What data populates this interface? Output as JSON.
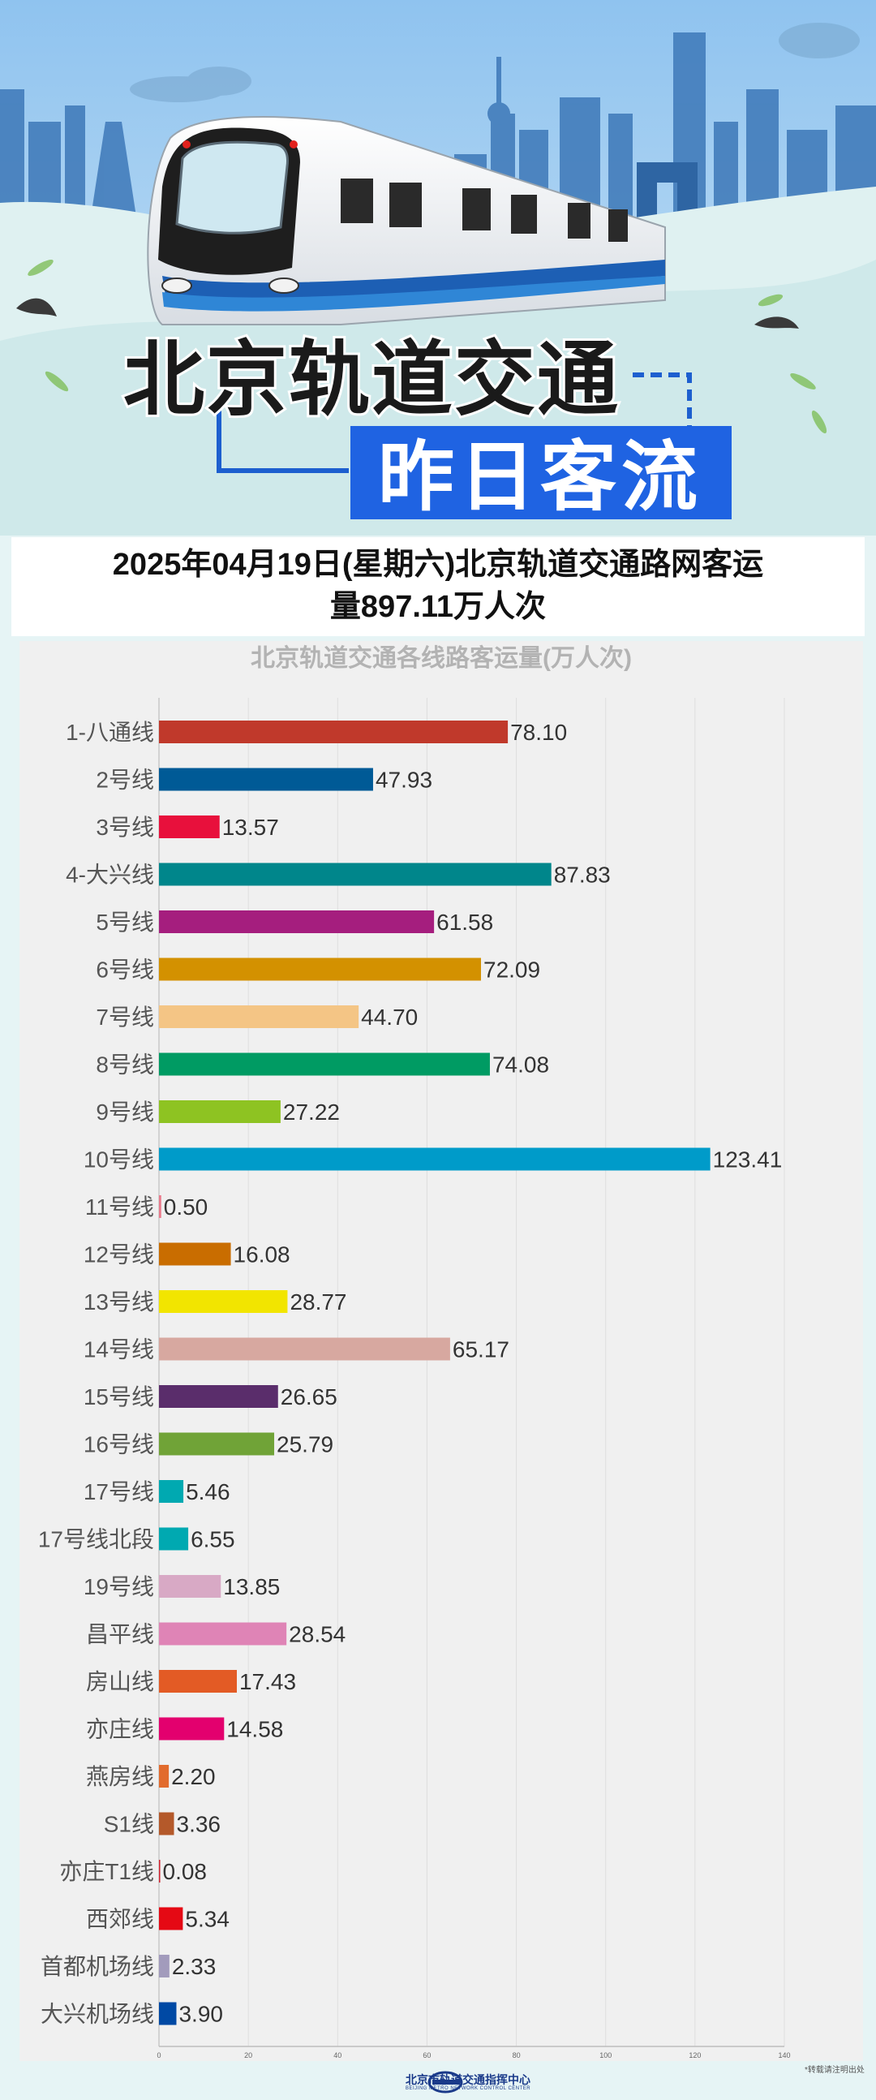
{
  "header": {
    "title": "北京轨道交通",
    "subtitle_tag": "昨日客流"
  },
  "summary": {
    "line1": "2025年04月19日(星期六)北京轨道交通路网客运",
    "line2": "量897.11万人次"
  },
  "chart_data": {
    "type": "bar",
    "orientation": "horizontal",
    "title": "北京轨道交通各线路客运量(万人次)",
    "xlim": [
      0,
      140
    ],
    "xticks": [
      0,
      20,
      40,
      60,
      80,
      100,
      120,
      140
    ],
    "grid": true,
    "categories": [
      "1-八通线",
      "2号线",
      "3号线",
      "4-大兴线",
      "5号线",
      "6号线",
      "7号线",
      "8号线",
      "9号线",
      "10号线",
      "11号线",
      "12号线",
      "13号线",
      "14号线",
      "15号线",
      "16号线",
      "17号线",
      "17号线北段",
      "19号线",
      "昌平线",
      "房山线",
      "亦庄线",
      "燕房线",
      "S1线",
      "亦庄T1线",
      "西郊线",
      "首都机场线",
      "大兴机场线"
    ],
    "values": [
      78.1,
      47.93,
      13.57,
      87.83,
      61.58,
      72.09,
      44.7,
      74.08,
      27.22,
      123.41,
      0.5,
      16.08,
      28.77,
      65.17,
      26.65,
      25.79,
      5.46,
      6.55,
      13.85,
      28.54,
      17.43,
      14.58,
      2.2,
      3.36,
      0.08,
      5.34,
      2.33,
      3.9
    ],
    "value_labels": [
      "78.10",
      "47.93",
      "13.57",
      "87.83",
      "61.58",
      "72.09",
      "44.70",
      "74.08",
      "27.22",
      "123.41",
      "0.50",
      "16.08",
      "28.77",
      "65.17",
      "26.65",
      "25.79",
      "5.46",
      "6.55",
      "13.85",
      "28.54",
      "17.43",
      "14.58",
      "2.20",
      "3.36",
      "0.08",
      "5.34",
      "2.33",
      "3.90"
    ],
    "colors": [
      "#c0392b",
      "#005a96",
      "#e8103c",
      "#00868b",
      "#a51e7e",
      "#d39100",
      "#f4c585",
      "#009b63",
      "#8ec322",
      "#009bc9",
      "#ea7a8c",
      "#c96d00",
      "#f2e500",
      "#d7a8a0",
      "#5a2d6b",
      "#70a337",
      "#00a9b1",
      "#00a9b1",
      "#d8a9c5",
      "#df84b6",
      "#e35b25",
      "#e3006e",
      "#e26b2d",
      "#b4592a",
      "#d1202d",
      "#e50914",
      "#a29bbc",
      "#0049a4"
    ]
  },
  "footer": {
    "org_name": "北京市轨道交通指挥中心",
    "org_name_en": "BEIJING METRO NETWORK CONTROL CENTER",
    "note": "*转载请注明出处"
  }
}
